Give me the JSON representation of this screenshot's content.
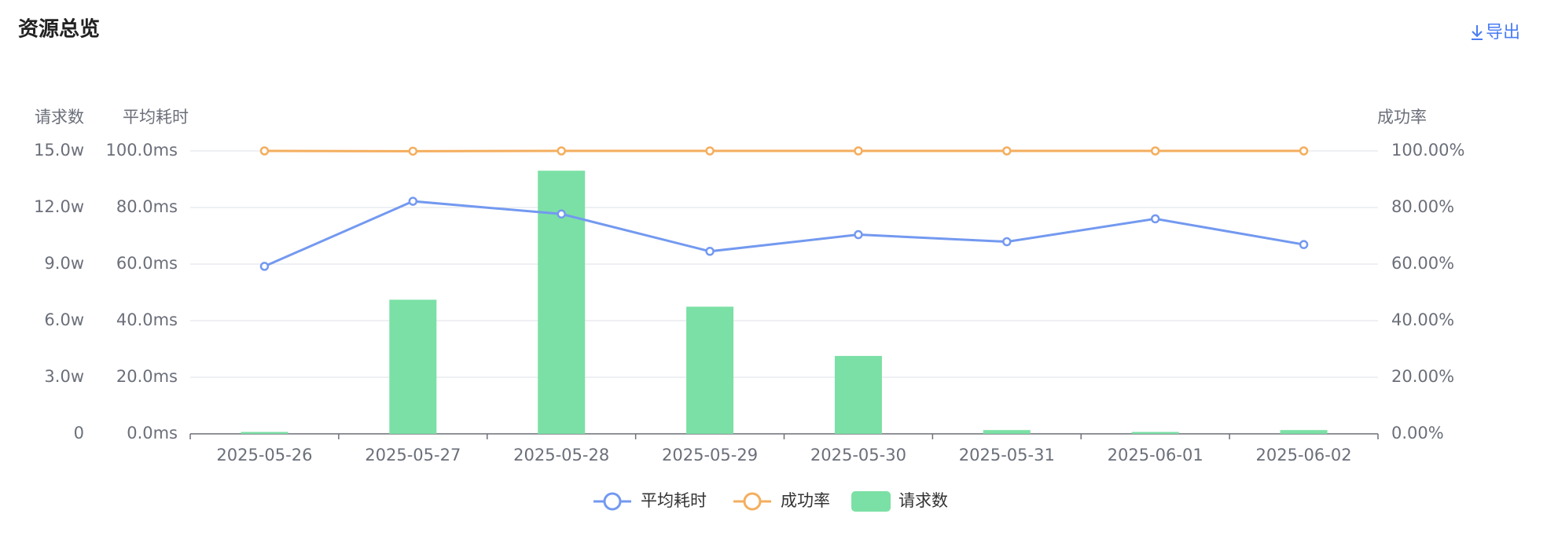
{
  "header": {
    "title": "资源总览",
    "export": "导出"
  },
  "chart_data": {
    "type": "combo",
    "categories": [
      "2025-05-26",
      "2025-05-27",
      "2025-05-28",
      "2025-05-29",
      "2025-05-30",
      "2025-05-31",
      "2025-06-01",
      "2025-06-02"
    ],
    "series": [
      {
        "name": "平均耗时",
        "type": "line",
        "axis": "y2",
        "color": "#7399f0",
        "values": [
          59.2,
          82.2,
          77.7,
          64.5,
          70.4,
          67.9,
          76.0,
          66.9
        ]
      },
      {
        "name": "成功率",
        "type": "line",
        "axis": "y3",
        "color": "#f4ae5e",
        "values": [
          100,
          99.9,
          100,
          100,
          100,
          100,
          100,
          100
        ]
      },
      {
        "name": "请求数",
        "type": "bar",
        "axis": "y",
        "color": "#7be0a5",
        "values": [
          0.1,
          7.11,
          13.95,
          6.74,
          4.13,
          0.2,
          0.1,
          0.2
        ]
      }
    ],
    "y_label": "请求数",
    "ylim": [
      0,
      15
    ],
    "yticks": [
      0,
      {
        "value": 3,
        "label": "3.0w"
      },
      {
        "value": 6,
        "label": "6.0w"
      },
      {
        "value": 9,
        "label": "9.0w"
      },
      {
        "value": 12,
        "label": "12.0w"
      },
      {
        "value": 15,
        "label": "15.0w"
      }
    ],
    "y2_label": "平均耗时",
    "y2lim": [
      0,
      100
    ],
    "y2ticks": [
      {
        "value": 0,
        "label": "0.0ms"
      },
      {
        "value": 20,
        "label": "20.0ms"
      },
      {
        "value": 40,
        "label": "40.0ms"
      },
      {
        "value": 60,
        "label": "60.0ms"
      },
      {
        "value": 80,
        "label": "80.0ms"
      },
      {
        "value": 100,
        "label": "100.0ms"
      }
    ],
    "y3_label": "成功率",
    "y3lim": [
      0,
      100
    ],
    "y3ticks": [
      {
        "value": 0,
        "label": "0.00%"
      },
      {
        "value": 20,
        "label": "20.00%"
      },
      {
        "value": 40,
        "label": "40.00%"
      },
      {
        "value": 60,
        "label": "60.00%"
      },
      {
        "value": 80,
        "label": "80.00%"
      },
      {
        "value": 100,
        "label": "100.00%"
      }
    ],
    "grid": true
  }
}
